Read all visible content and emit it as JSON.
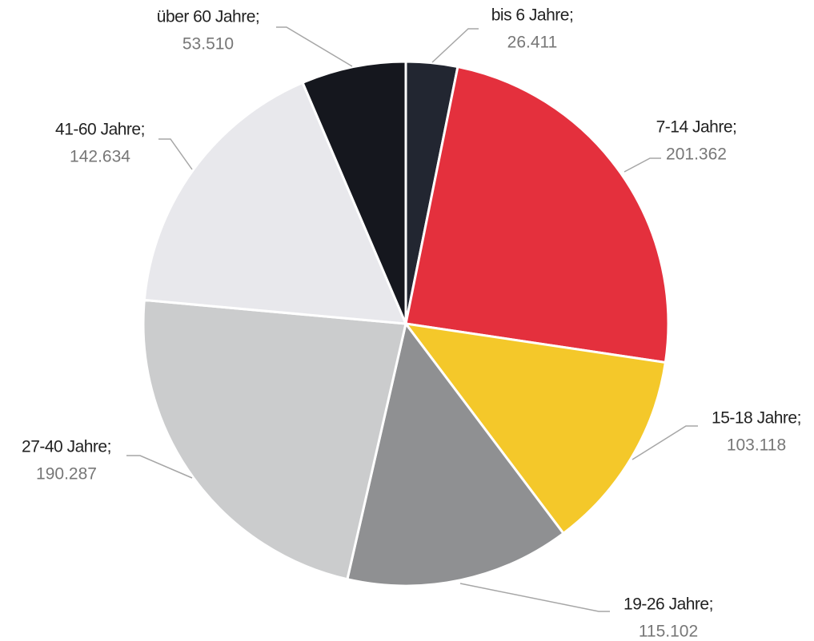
{
  "chart_data": {
    "type": "pie",
    "categories": [
      "bis 6 Jahre;",
      "7-14 Jahre;",
      "15-18 Jahre;",
      "19-26 Jahre;",
      "27-40 Jahre;",
      "41-60 Jahre;",
      "über 60 Jahre;"
    ],
    "values": [
      26411,
      201362,
      103118,
      115102,
      190287,
      142634,
      53510
    ],
    "value_labels": [
      "26.411",
      "201.362",
      "103.118",
      "115.102",
      "190.287",
      "142.634",
      "53.510"
    ],
    "colors": [
      "#222631",
      "#e4303d",
      "#f4c82a",
      "#8f9092",
      "#cbcccd",
      "#e8e8ec",
      "#15171e"
    ]
  }
}
